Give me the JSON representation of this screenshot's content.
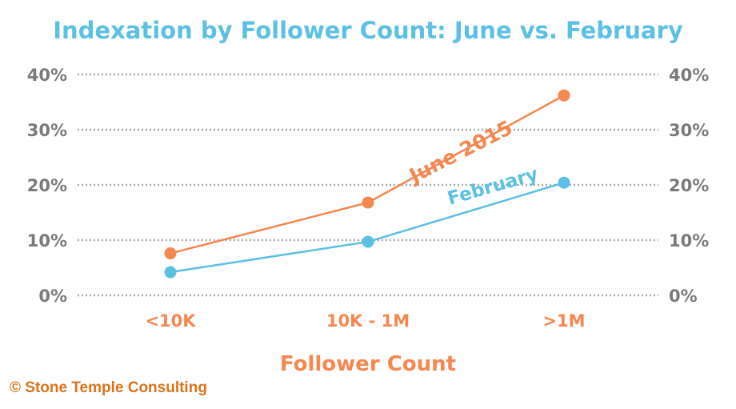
{
  "chart_data": {
    "type": "line",
    "title": "Indexation by Follower Count: June vs. February",
    "xlabel": "Follower Count",
    "ylabel": "",
    "categories": [
      "<10K",
      "10K - 1M",
      ">1M"
    ],
    "y_ticks": [
      "0%",
      "10%",
      "20%",
      "30%",
      "40%"
    ],
    "ylim": [
      0,
      40
    ],
    "grid": true,
    "series": [
      {
        "name": "June 2015",
        "values": [
          7.6,
          16.8,
          36.2
        ],
        "color": "#f5874f"
      },
      {
        "name": "February",
        "values": [
          4.2,
          9.7,
          20.4
        ],
        "color": "#5bc0e3"
      }
    ],
    "title_color": "#5bc0e3"
  },
  "credit": "© Stone Temple Consulting"
}
